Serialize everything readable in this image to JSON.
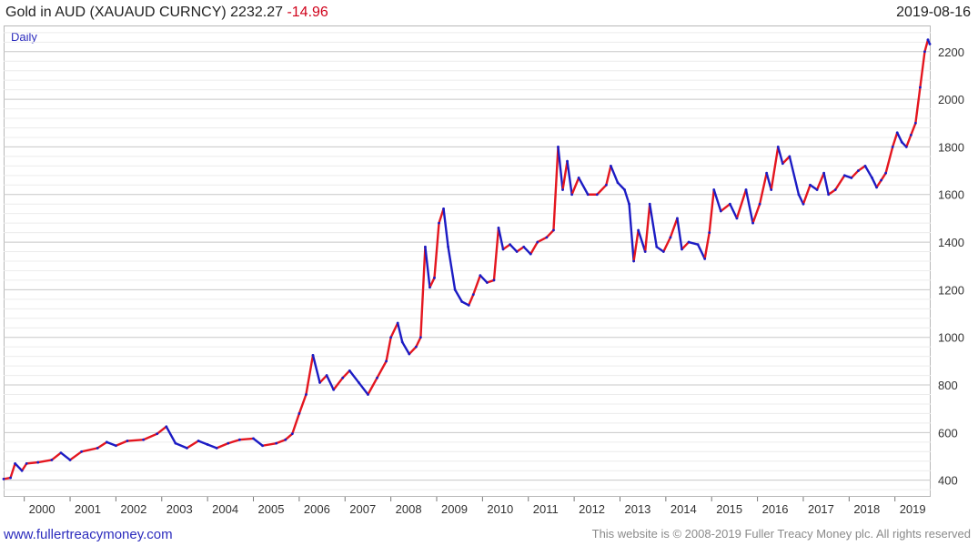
{
  "header": {
    "title": "Gold in AUD (XAUAUD CURNCY) 2232.27",
    "change": "-14.96",
    "date": "2019-08-16"
  },
  "period_label": "Daily",
  "footer": {
    "site": "www.fullertreacymoney.com",
    "copyright": "This website is © 2008-2019 Fuller Treacy Money plc. All rights reserved"
  },
  "colors": {
    "up": "#e4161f",
    "down": "#1c1cc4",
    "grid": "#d9d9d9",
    "grid_major": "#c8c8c8",
    "axis_text": "#333333"
  },
  "chart_data": {
    "type": "line",
    "title": "Gold in AUD (XAUAUD CURNCY)",
    "xlabel": "",
    "ylabel": "",
    "xlim": [
      1999.55,
      2019.78
    ],
    "ylim": [
      330,
      2310
    ],
    "y_ticks": [
      400,
      600,
      800,
      1000,
      1200,
      1400,
      1600,
      1800,
      2000,
      2200
    ],
    "x_ticks": [
      "2000",
      "2001",
      "2002",
      "2003",
      "2004",
      "2005",
      "2006",
      "2007",
      "2008",
      "2009",
      "2010",
      "2011",
      "2012",
      "2013",
      "2014",
      "2015",
      "2016",
      "2017",
      "2018",
      "2019"
    ],
    "grid": true,
    "series": [
      {
        "values": [
          [
            1999.55,
            405
          ],
          [
            1999.7,
            410
          ],
          [
            1999.8,
            470
          ],
          [
            1999.95,
            440
          ],
          [
            2000.05,
            470
          ],
          [
            2000.3,
            475
          ],
          [
            2000.6,
            485
          ],
          [
            2000.8,
            515
          ],
          [
            2001.0,
            485
          ],
          [
            2001.25,
            520
          ],
          [
            2001.6,
            535
          ],
          [
            2001.8,
            560
          ],
          [
            2002.0,
            545
          ],
          [
            2002.25,
            565
          ],
          [
            2002.6,
            570
          ],
          [
            2002.9,
            595
          ],
          [
            2003.1,
            625
          ],
          [
            2003.3,
            555
          ],
          [
            2003.55,
            535
          ],
          [
            2003.8,
            565
          ],
          [
            2004.0,
            550
          ],
          [
            2004.2,
            535
          ],
          [
            2004.45,
            555
          ],
          [
            2004.7,
            570
          ],
          [
            2005.0,
            575
          ],
          [
            2005.2,
            545
          ],
          [
            2005.5,
            555
          ],
          [
            2005.7,
            570
          ],
          [
            2005.85,
            595
          ],
          [
            2006.0,
            680
          ],
          [
            2006.15,
            760
          ],
          [
            2006.3,
            925
          ],
          [
            2006.45,
            810
          ],
          [
            2006.6,
            840
          ],
          [
            2006.75,
            780
          ],
          [
            2006.95,
            830
          ],
          [
            2007.1,
            860
          ],
          [
            2007.3,
            810
          ],
          [
            2007.5,
            760
          ],
          [
            2007.7,
            830
          ],
          [
            2007.9,
            900
          ],
          [
            2008.0,
            1000
          ],
          [
            2008.15,
            1060
          ],
          [
            2008.25,
            980
          ],
          [
            2008.4,
            930
          ],
          [
            2008.55,
            960
          ],
          [
            2008.65,
            1000
          ],
          [
            2008.75,
            1380
          ],
          [
            2008.85,
            1210
          ],
          [
            2008.95,
            1250
          ],
          [
            2009.05,
            1480
          ],
          [
            2009.15,
            1540
          ],
          [
            2009.25,
            1380
          ],
          [
            2009.4,
            1200
          ],
          [
            2009.55,
            1150
          ],
          [
            2009.7,
            1135
          ],
          [
            2009.8,
            1180
          ],
          [
            2009.95,
            1260
          ],
          [
            2010.1,
            1230
          ],
          [
            2010.25,
            1240
          ],
          [
            2010.35,
            1460
          ],
          [
            2010.45,
            1370
          ],
          [
            2010.6,
            1390
          ],
          [
            2010.75,
            1360
          ],
          [
            2010.9,
            1380
          ],
          [
            2011.05,
            1350
          ],
          [
            2011.2,
            1400
          ],
          [
            2011.4,
            1420
          ],
          [
            2011.55,
            1450
          ],
          [
            2011.65,
            1800
          ],
          [
            2011.75,
            1620
          ],
          [
            2011.85,
            1740
          ],
          [
            2011.95,
            1600
          ],
          [
            2012.1,
            1670
          ],
          [
            2012.3,
            1600
          ],
          [
            2012.5,
            1600
          ],
          [
            2012.7,
            1640
          ],
          [
            2012.8,
            1720
          ],
          [
            2012.95,
            1650
          ],
          [
            2013.1,
            1620
          ],
          [
            2013.2,
            1560
          ],
          [
            2013.3,
            1320
          ],
          [
            2013.4,
            1450
          ],
          [
            2013.55,
            1360
          ],
          [
            2013.65,
            1560
          ],
          [
            2013.8,
            1380
          ],
          [
            2013.95,
            1360
          ],
          [
            2014.1,
            1420
          ],
          [
            2014.25,
            1500
          ],
          [
            2014.35,
            1370
          ],
          [
            2014.5,
            1400
          ],
          [
            2014.7,
            1390
          ],
          [
            2014.85,
            1330
          ],
          [
            2014.95,
            1440
          ],
          [
            2015.05,
            1620
          ],
          [
            2015.2,
            1530
          ],
          [
            2015.4,
            1560
          ],
          [
            2015.55,
            1500
          ],
          [
            2015.75,
            1620
          ],
          [
            2015.9,
            1480
          ],
          [
            2016.05,
            1560
          ],
          [
            2016.2,
            1690
          ],
          [
            2016.3,
            1620
          ],
          [
            2016.45,
            1800
          ],
          [
            2016.55,
            1730
          ],
          [
            2016.7,
            1760
          ],
          [
            2016.9,
            1600
          ],
          [
            2017.0,
            1560
          ],
          [
            2017.15,
            1640
          ],
          [
            2017.3,
            1620
          ],
          [
            2017.45,
            1690
          ],
          [
            2017.55,
            1600
          ],
          [
            2017.7,
            1620
          ],
          [
            2017.9,
            1680
          ],
          [
            2018.05,
            1670
          ],
          [
            2018.2,
            1700
          ],
          [
            2018.35,
            1720
          ],
          [
            2018.5,
            1670
          ],
          [
            2018.6,
            1630
          ],
          [
            2018.7,
            1660
          ],
          [
            2018.8,
            1690
          ],
          [
            2018.95,
            1800
          ],
          [
            2019.05,
            1860
          ],
          [
            2019.15,
            1820
          ],
          [
            2019.25,
            1800
          ],
          [
            2019.35,
            1850
          ],
          [
            2019.45,
            1900
          ],
          [
            2019.55,
            2050
          ],
          [
            2019.65,
            2200
          ],
          [
            2019.72,
            2250
          ],
          [
            2019.76,
            2232
          ]
        ]
      }
    ]
  }
}
